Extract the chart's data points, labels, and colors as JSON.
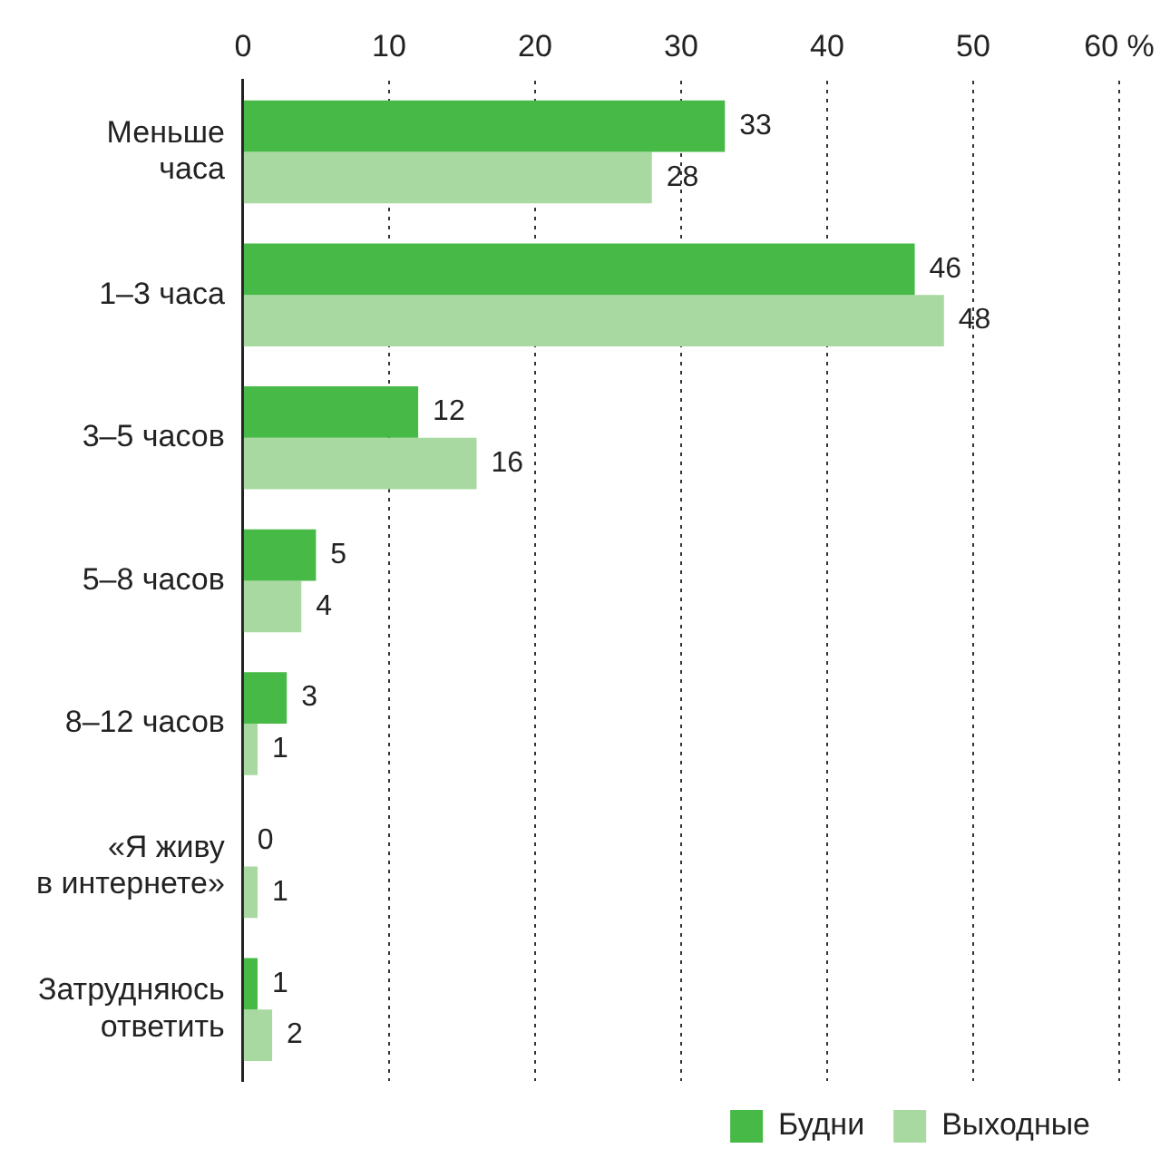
{
  "chart_data": {
    "type": "bar",
    "orientation": "horizontal",
    "categories": [
      "Меньше\nчаса",
      "1–3 часа",
      "3–5 часов",
      "5–8 часов",
      "8–12 часов",
      "«Я живу\nв интернете»",
      "Затрудняюсь\nответить"
    ],
    "series": [
      {
        "name": "Будни",
        "color": "#46b946",
        "values": [
          33,
          46,
          12,
          5,
          3,
          0,
          1
        ]
      },
      {
        "name": "Выходные",
        "color": "#a8d9a0",
        "values": [
          28,
          48,
          16,
          4,
          1,
          1,
          2
        ]
      }
    ],
    "xlim": [
      0,
      60
    ],
    "xticks": [
      0,
      10,
      20,
      30,
      40,
      50,
      {
        "value": 60,
        "label": "60 %"
      }
    ],
    "grid": "x",
    "legend": "bottom right",
    "data_labels": true
  }
}
